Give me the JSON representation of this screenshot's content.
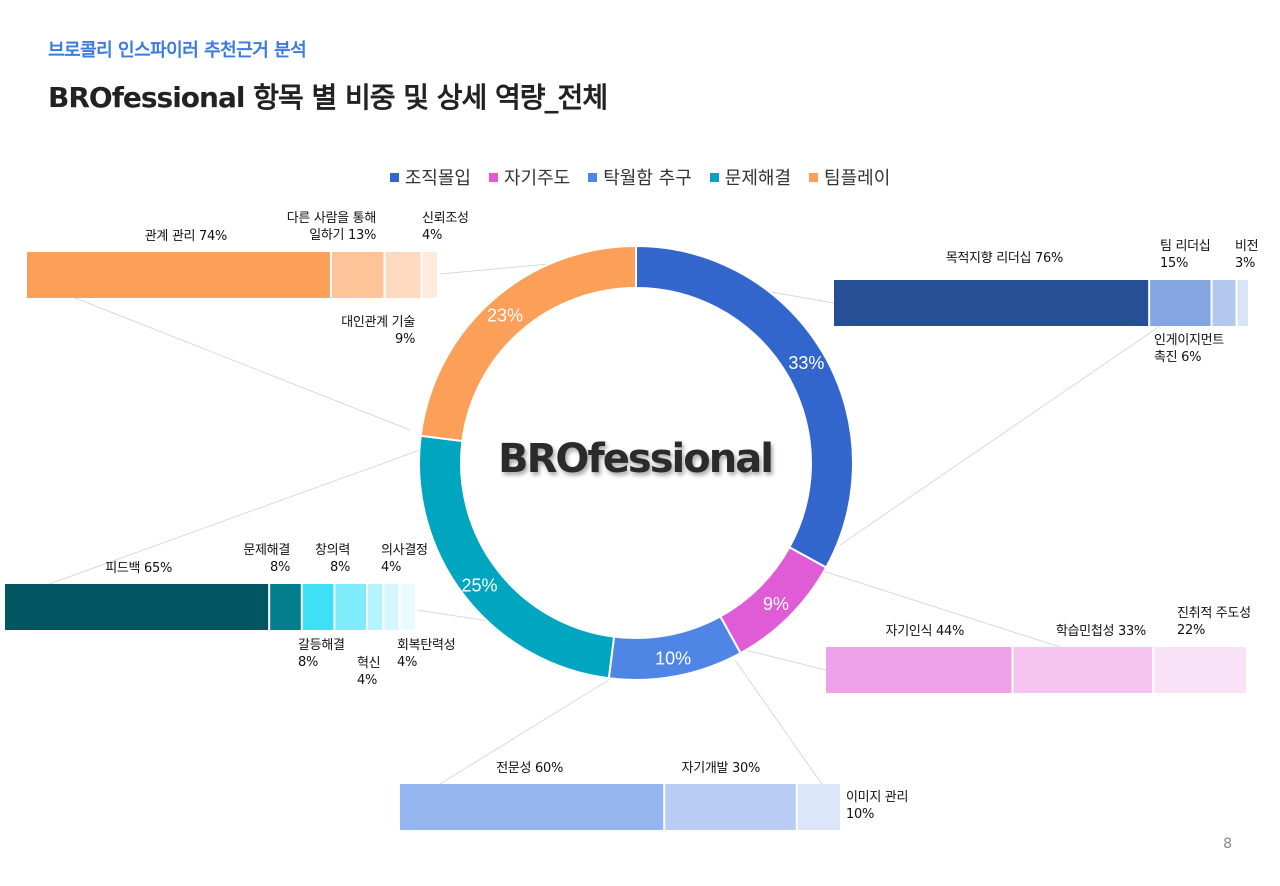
{
  "header": {
    "subtitle": "브로콜리 인스파이러 추천근거 분석",
    "title": "BROfessional 항목 별 비중 및 상세 역량_전체"
  },
  "center_label": "BROfessional",
  "page_number": "8",
  "chart_data": {
    "type": "pie",
    "donut": true,
    "series": [
      {
        "name": "조직몰입",
        "value": 33,
        "label": "33%",
        "color": "#3366cc"
      },
      {
        "name": "자기주도",
        "value": 9,
        "label": "9%",
        "color": "#e05cd6"
      },
      {
        "name": "탁월함 추구",
        "value": 10,
        "label": "10%",
        "color": "#4f86e6"
      },
      {
        "name": "문제해결",
        "value": 25,
        "label": "25%",
        "color": "#00a6c0"
      },
      {
        "name": "팀플레이",
        "value": 23,
        "label": "23%",
        "color": "#fb9f59"
      }
    ],
    "legend": "top",
    "breakdowns": [
      {
        "parent": "조직몰입",
        "items": [
          {
            "label": "목적지향 리더십 76%",
            "value": 76,
            "color": "#264f96"
          },
          {
            "label": "팀 리더십\n15%",
            "value": 15,
            "color": "#86a6e2"
          },
          {
            "label": "인게이지먼트\n촉진 6%",
            "value": 6,
            "color": "#b3c8ef"
          },
          {
            "label": "비전\n3%",
            "value": 3,
            "color": "#dae4f8"
          }
        ]
      },
      {
        "parent": "자기주도",
        "items": [
          {
            "label": "자기인식 44%",
            "value": 44,
            "color": "#eda2e7"
          },
          {
            "label": "학습민첩성 33%",
            "value": 33,
            "color": "#f3c4ef"
          },
          {
            "label": "진취적 주도성\n22%",
            "value": 22,
            "color": "#f9e2f7"
          }
        ]
      },
      {
        "parent": "탁월함 추구",
        "items": [
          {
            "label": "전문성 60%",
            "value": 60,
            "color": "#94b5ee"
          },
          {
            "label": "자기개발 30%",
            "value": 30,
            "color": "#bacef5"
          },
          {
            "label": "이미지 관리\n10%",
            "value": 10,
            "color": "#dbe6fa"
          }
        ]
      },
      {
        "parent": "문제해결",
        "items": [
          {
            "label": "피드백 65%",
            "value": 65,
            "color": "#015662"
          },
          {
            "label": "문제해결\n8%",
            "value": 8,
            "color": "#047f8e"
          },
          {
            "label": "갈등해결\n8%",
            "value": 8,
            "color": "#3ee0f6"
          },
          {
            "label": "창의력\n8%",
            "value": 8,
            "color": "#7eecfa"
          },
          {
            "label": "혁신\n4%",
            "value": 4,
            "color": "#b6f4fc"
          },
          {
            "label": "의사결정\n4%",
            "value": 4,
            "color": "#d3f7fd"
          },
          {
            "label": "회복탄력성\n4%",
            "value": 4,
            "color": "#e9fbfe"
          }
        ]
      },
      {
        "parent": "팀플레이",
        "items": [
          {
            "label": "관계 관리 74%",
            "value": 74,
            "color": "#fb9f59"
          },
          {
            "label": "다른 사람을 통해\n일하기 13%",
            "value": 13,
            "color": "#fdc49a"
          },
          {
            "label": "대인관계 기술\n9%",
            "value": 9,
            "color": "#fdd9bf"
          },
          {
            "label": "신뢰조성\n4%",
            "value": 4,
            "color": "#feebde"
          }
        ]
      }
    ]
  }
}
